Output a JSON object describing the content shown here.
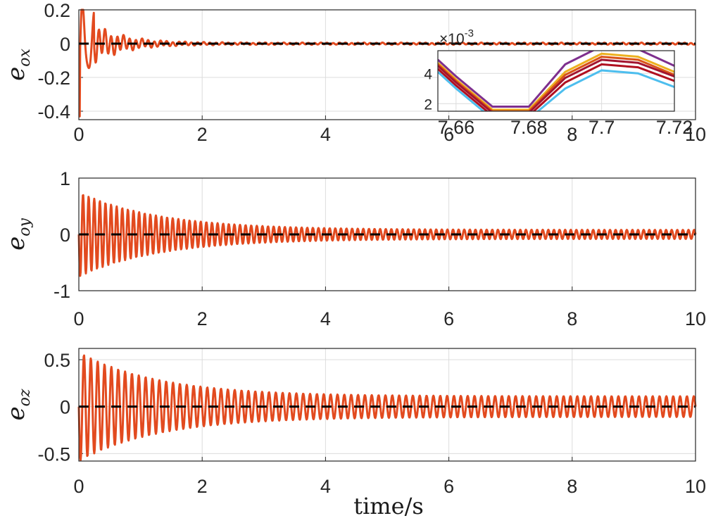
{
  "chart_data": [
    {
      "type": "line",
      "ylabel": "e_ox",
      "ylabel_base": "e",
      "ylabel_sub": "ox",
      "xlim": [
        0,
        10
      ],
      "ylim": [
        -0.45,
        0.2
      ],
      "xticks": [
        "0",
        "2",
        "4",
        "6",
        "8",
        "10"
      ],
      "yticks": [
        "0.2",
        "0",
        "-0.2",
        "-0.4"
      ],
      "grid": true,
      "series": [
        {
          "color": "#e24a1f",
          "style": "solid",
          "envelope": {
            "initial_min": -0.43,
            "initial_max": 0.18,
            "final_amplitude": 0.005,
            "frequency_hz": 10
          }
        },
        {
          "color": "#000000",
          "style": "dashed",
          "values": {
            "x": [
              0,
              10
            ],
            "y": [
              0,
              0
            ]
          }
        }
      ],
      "inset": {
        "xlim": [
          7.655,
          7.72
        ],
        "ylim": [
          0.0015,
          0.0055
        ],
        "xticks": [
          "7.66",
          "7.68",
          "7.7",
          "7.72"
        ],
        "yticks": [
          "4",
          "2"
        ],
        "exponent_label": "×10",
        "exponent_power": "-3",
        "x": [
          7.655,
          7.66,
          7.67,
          7.68,
          7.69,
          7.7,
          7.71,
          7.72
        ],
        "series": [
          {
            "color": "#7e2f8e",
            "values": [
              0.0049,
              0.0038,
              0.0018,
              0.0018,
              0.0046,
              0.0058,
              0.0056,
              0.0045
            ]
          },
          {
            "color": "#edb120",
            "values": [
              0.0047,
              0.0036,
              0.0016,
              0.0016,
              0.0041,
              0.0053,
              0.0051,
              0.0041
            ]
          },
          {
            "color": "#d95319",
            "values": [
              0.0046,
              0.0035,
              0.0015,
              0.0015,
              0.0039,
              0.0051,
              0.0049,
              0.0039
            ]
          },
          {
            "color": "#a2142f",
            "values": [
              0.0045,
              0.0034,
              0.0014,
              0.0014,
              0.0037,
              0.0049,
              0.0047,
              0.0038
            ]
          },
          {
            "color": "#b01020",
            "values": [
              0.0043,
              0.0032,
              0.0012,
              0.0012,
              0.0034,
              0.0046,
              0.0044,
              0.0035
            ]
          },
          {
            "color": "#4dbeee",
            "values": [
              0.0041,
              0.003,
              0.001,
              0.001,
              0.003,
              0.0042,
              0.004,
              0.0031
            ]
          }
        ]
      }
    },
    {
      "type": "line",
      "ylabel": "e_oy",
      "ylabel_base": "e",
      "ylabel_sub": "oy",
      "xlim": [
        0,
        10
      ],
      "ylim": [
        -1,
        1
      ],
      "xticks": [
        "0",
        "2",
        "4",
        "6",
        "8",
        "10"
      ],
      "yticks": [
        "1",
        "0",
        "-1"
      ],
      "grid": true,
      "series": [
        {
          "color": "#e24a1f",
          "style": "solid",
          "envelope": {
            "initial_amplitude": 0.75,
            "final_amplitude": 0.08,
            "frequency_hz": 11
          }
        },
        {
          "color": "#000000",
          "style": "dashed",
          "values": {
            "x": [
              0,
              10
            ],
            "y": [
              0,
              0
            ]
          }
        }
      ]
    },
    {
      "type": "line",
      "ylabel": "e_oz",
      "ylabel_base": "e",
      "ylabel_sub": "oz",
      "xlabel": "time/s",
      "xlim": [
        0,
        10
      ],
      "ylim": [
        -0.58,
        0.62
      ],
      "xticks": [
        "0",
        "2",
        "4",
        "6",
        "8",
        "10"
      ],
      "yticks": [
        "0.5",
        "0",
        "-0.5"
      ],
      "grid": true,
      "series": [
        {
          "color": "#e24a1f",
          "style": "solid",
          "envelope": {
            "initial_amplitude": 0.58,
            "final_amplitude": 0.11,
            "frequency_hz": 9
          }
        },
        {
          "color": "#000000",
          "style": "dashed",
          "values": {
            "x": [
              0,
              10
            ],
            "y": [
              0,
              0
            ]
          }
        }
      ]
    }
  ]
}
